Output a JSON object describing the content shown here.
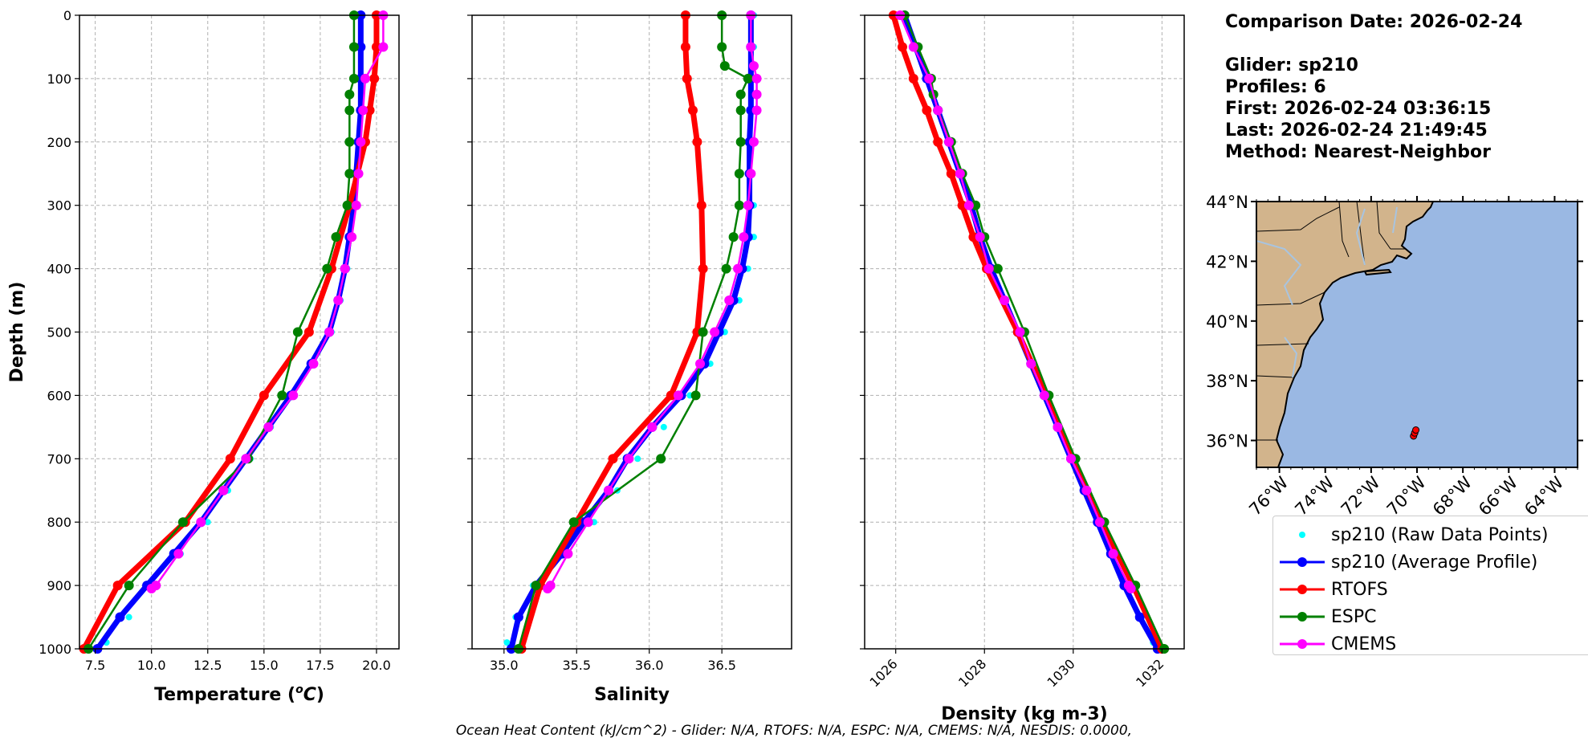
{
  "info": {
    "comparison_date": "Comparison Date: 2026-02-24",
    "glider": "Glider: sp210",
    "profiles": "Profiles: 6",
    "first": "First: 2026-02-24 03:36:15",
    "last": "Last: 2026-02-24 21:49:45",
    "method": "Method: Nearest-Neighbor"
  },
  "footer": "Ocean Heat Content (kJ/cm^2) - Glider: N/A,  RTOFS: N/A,  ESPC: N/A,  CMEMS: N/A,  NESDIS: 0.0000,",
  "legend": [
    {
      "label": "sp210 (Raw Data Points)",
      "color": "#00ffff",
      "style": "dot"
    },
    {
      "label": "sp210 (Average Profile)",
      "color": "#0000ff",
      "style": "line"
    },
    {
      "label": "RTOFS",
      "color": "#ff0000",
      "style": "line"
    },
    {
      "label": "ESPC",
      "color": "#008000",
      "style": "line"
    },
    {
      "label": "CMEMS",
      "color": "#ff00ff",
      "style": "line"
    }
  ],
  "chart_data": [
    {
      "type": "line",
      "xlabel": "Temperature (°C)",
      "ylabel": "Depth (m)",
      "xlim": [
        6.8,
        21.0
      ],
      "ylim": [
        1000,
        0
      ],
      "xticks": [
        "7.5",
        "10.0",
        "12.5",
        "15.0",
        "17.5",
        "20.0"
      ],
      "yticks": [
        "0",
        "100",
        "200",
        "300",
        "400",
        "500",
        "600",
        "700",
        "800",
        "900",
        "1000"
      ],
      "grid": true,
      "series": [
        {
          "name": "sp210 (Raw Data Points)",
          "depth": [
            0,
            50,
            100,
            150,
            200,
            250,
            300,
            350,
            400,
            450,
            500,
            550,
            600,
            650,
            700,
            750,
            800,
            850,
            900,
            950,
            990
          ],
          "x": [
            19.3,
            19.3,
            19.3,
            19.3,
            19.2,
            19.1,
            19.0,
            18.9,
            18.7,
            18.4,
            18.0,
            17.2,
            16.3,
            15.3,
            14.4,
            13.4,
            12.5,
            11.3,
            10.2,
            9.0,
            8.0
          ]
        },
        {
          "name": "sp210 (Average Profile)",
          "depth": [
            0,
            50,
            100,
            150,
            200,
            250,
            300,
            350,
            400,
            450,
            500,
            550,
            600,
            650,
            700,
            750,
            800,
            850,
            900,
            950,
            1000
          ],
          "x": [
            19.3,
            19.3,
            19.3,
            19.3,
            19.2,
            19.1,
            19.0,
            18.8,
            18.6,
            18.3,
            17.9,
            17.1,
            16.2,
            15.2,
            14.2,
            13.2,
            12.2,
            11.0,
            9.8,
            8.6,
            7.6
          ]
        },
        {
          "name": "RTOFS",
          "depth": [
            0,
            50,
            100,
            150,
            200,
            300,
            400,
            500,
            600,
            700,
            800,
            900,
            1000
          ],
          "x": [
            20.0,
            20.0,
            19.9,
            19.7,
            19.5,
            18.8,
            18.0,
            17.0,
            15.0,
            13.5,
            11.5,
            8.5,
            7.0
          ]
        },
        {
          "name": "ESPC",
          "depth": [
            0,
            50,
            100,
            125,
            150,
            200,
            250,
            300,
            350,
            400,
            500,
            600,
            700,
            800,
            900,
            1000
          ],
          "x": [
            19.0,
            19.0,
            19.0,
            18.8,
            18.8,
            18.8,
            18.8,
            18.7,
            18.2,
            17.8,
            16.5,
            15.8,
            14.3,
            11.4,
            9.0,
            7.2
          ]
        },
        {
          "name": "CMEMS",
          "depth": [
            0,
            50,
            100,
            150,
            200,
            250,
            300,
            350,
            400,
            450,
            500,
            550,
            600,
            650,
            700,
            750,
            800,
            850,
            900,
            905
          ],
          "x": [
            20.3,
            20.3,
            19.5,
            19.4,
            19.3,
            19.2,
            19.1,
            18.9,
            18.6,
            18.3,
            17.9,
            17.2,
            16.3,
            15.2,
            14.2,
            13.2,
            12.2,
            11.2,
            10.2,
            10.0
          ]
        }
      ]
    },
    {
      "type": "line",
      "xlabel": "Salinity",
      "ylabel": "",
      "xlim": [
        34.78,
        36.98
      ],
      "ylim": [
        1000,
        0
      ],
      "xticks": [
        "35.0",
        "35.5",
        "36.0",
        "36.5"
      ],
      "yticks": [],
      "grid": true,
      "series": [
        {
          "name": "sp210 (Raw Data Points)",
          "depth": [
            0,
            50,
            100,
            150,
            200,
            250,
            300,
            350,
            400,
            450,
            500,
            550,
            600,
            650,
            700,
            750,
            800,
            850,
            900,
            950,
            990
          ],
          "x": [
            36.72,
            36.72,
            36.72,
            36.72,
            36.71,
            36.71,
            36.72,
            36.72,
            36.68,
            36.62,
            36.52,
            36.42,
            36.28,
            36.1,
            35.92,
            35.78,
            35.62,
            35.45,
            35.2,
            35.08,
            35.02
          ]
        },
        {
          "name": "sp210 (Average Profile)",
          "depth": [
            0,
            50,
            100,
            150,
            200,
            250,
            300,
            350,
            400,
            450,
            500,
            550,
            600,
            650,
            700,
            750,
            800,
            850,
            900,
            950,
            1000
          ],
          "x": [
            36.7,
            36.7,
            36.7,
            36.7,
            36.69,
            36.69,
            36.69,
            36.68,
            36.64,
            36.58,
            36.48,
            36.38,
            36.22,
            36.02,
            35.85,
            35.72,
            35.55,
            35.4,
            35.22,
            35.1,
            35.05
          ]
        },
        {
          "name": "RTOFS",
          "depth": [
            0,
            50,
            100,
            150,
            200,
            300,
            400,
            500,
            600,
            700,
            800,
            900,
            1000
          ],
          "x": [
            36.25,
            36.25,
            36.26,
            36.3,
            36.33,
            36.36,
            36.37,
            36.33,
            36.15,
            35.75,
            35.5,
            35.25,
            35.12
          ]
        },
        {
          "name": "ESPC",
          "depth": [
            0,
            50,
            80,
            100,
            125,
            150,
            200,
            250,
            300,
            350,
            400,
            500,
            600,
            700,
            800,
            900,
            1000
          ],
          "x": [
            36.5,
            36.5,
            36.52,
            36.68,
            36.63,
            36.63,
            36.63,
            36.62,
            36.62,
            36.58,
            36.53,
            36.37,
            36.32,
            36.08,
            35.48,
            35.22,
            35.1
          ]
        },
        {
          "name": "CMEMS",
          "depth": [
            0,
            50,
            80,
            100,
            125,
            150,
            200,
            250,
            300,
            350,
            400,
            450,
            500,
            550,
            600,
            650,
            700,
            750,
            800,
            850,
            900,
            905
          ],
          "x": [
            36.7,
            36.7,
            36.72,
            36.74,
            36.74,
            36.74,
            36.72,
            36.7,
            36.68,
            36.65,
            36.61,
            36.55,
            36.45,
            36.35,
            36.2,
            36.02,
            35.86,
            35.72,
            35.58,
            35.44,
            35.32,
            35.3
          ]
        }
      ]
    },
    {
      "type": "line",
      "xlabel": "Density (kg m-3)",
      "ylabel": "",
      "xlim": [
        1025.3,
        1032.5
      ],
      "ylim": [
        1000,
        0
      ],
      "xticks": [
        "1026",
        "1028",
        "1030",
        "1032"
      ],
      "yticks": [],
      "grid": true,
      "series": [
        {
          "name": "sp210 (Raw Data Points)",
          "depth": [
            0,
            50,
            100,
            150,
            200,
            250,
            300,
            350,
            400,
            450,
            500,
            550,
            600,
            650,
            700,
            750,
            800,
            850,
            900,
            950,
            990
          ],
          "x": [
            1026.2,
            1026.45,
            1026.7,
            1026.95,
            1027.2,
            1027.45,
            1027.7,
            1027.9,
            1028.15,
            1028.45,
            1028.75,
            1029.05,
            1029.35,
            1029.65,
            1029.95,
            1030.25,
            1030.55,
            1030.85,
            1031.15,
            1031.5,
            1031.8
          ]
        },
        {
          "name": "sp210 (Average Profile)",
          "depth": [
            0,
            50,
            100,
            150,
            200,
            250,
            300,
            350,
            400,
            450,
            500,
            550,
            600,
            650,
            700,
            750,
            800,
            850,
            900,
            950,
            1000
          ],
          "x": [
            1026.2,
            1026.45,
            1026.7,
            1026.95,
            1027.2,
            1027.45,
            1027.7,
            1027.9,
            1028.15,
            1028.45,
            1028.75,
            1029.05,
            1029.35,
            1029.65,
            1029.95,
            1030.25,
            1030.55,
            1030.85,
            1031.15,
            1031.5,
            1031.9
          ]
        },
        {
          "name": "RTOFS",
          "depth": [
            0,
            50,
            100,
            150,
            200,
            250,
            300,
            350,
            400,
            500,
            600,
            700,
            800,
            900,
            1000
          ],
          "x": [
            1025.95,
            1026.15,
            1026.4,
            1026.7,
            1026.95,
            1027.25,
            1027.5,
            1027.75,
            1028.05,
            1028.75,
            1029.4,
            1030.0,
            1030.65,
            1031.35,
            1032.0
          ]
        },
        {
          "name": "ESPC",
          "depth": [
            0,
            50,
            100,
            125,
            150,
            200,
            250,
            300,
            350,
            400,
            500,
            600,
            700,
            800,
            900,
            1000
          ],
          "x": [
            1026.2,
            1026.5,
            1026.8,
            1026.85,
            1026.95,
            1027.25,
            1027.5,
            1027.8,
            1028.0,
            1028.3,
            1028.9,
            1029.45,
            1030.05,
            1030.7,
            1031.4,
            1032.05
          ]
        },
        {
          "name": "CMEMS",
          "depth": [
            0,
            50,
            100,
            150,
            200,
            250,
            300,
            350,
            400,
            450,
            500,
            550,
            600,
            650,
            700,
            750,
            800,
            850,
            900,
            905
          ],
          "x": [
            1026.1,
            1026.4,
            1026.75,
            1026.95,
            1027.2,
            1027.45,
            1027.65,
            1027.9,
            1028.1,
            1028.45,
            1028.8,
            1029.05,
            1029.35,
            1029.65,
            1029.95,
            1030.3,
            1030.6,
            1030.9,
            1031.25,
            1031.3
          ]
        }
      ]
    }
  ],
  "map": {
    "lat_labels": [
      "44°N",
      "42°N",
      "40°N",
      "38°N",
      "36°N"
    ],
    "lon_labels": [
      "76°W",
      "74°W",
      "72°W",
      "70°W",
      "68°W",
      "66°W",
      "64°W"
    ],
    "lon_range": [
      -77,
      -63
    ],
    "lat_range": [
      35.1,
      44
    ],
    "land_color": "#d2b48c",
    "ocean_color": "#9ab8e3",
    "glider_track": [
      {
        "lon": -70.15,
        "lat": 36.15
      },
      {
        "lon": -70.1,
        "lat": 36.25
      },
      {
        "lon": -70.05,
        "lat": 36.35
      }
    ]
  },
  "colors": {
    "raw": "#00ffff",
    "avg": "#0000ff",
    "rtofs": "#ff0000",
    "espc": "#008000",
    "cmems": "#ff00ff",
    "grid": "#b0b0b0"
  }
}
